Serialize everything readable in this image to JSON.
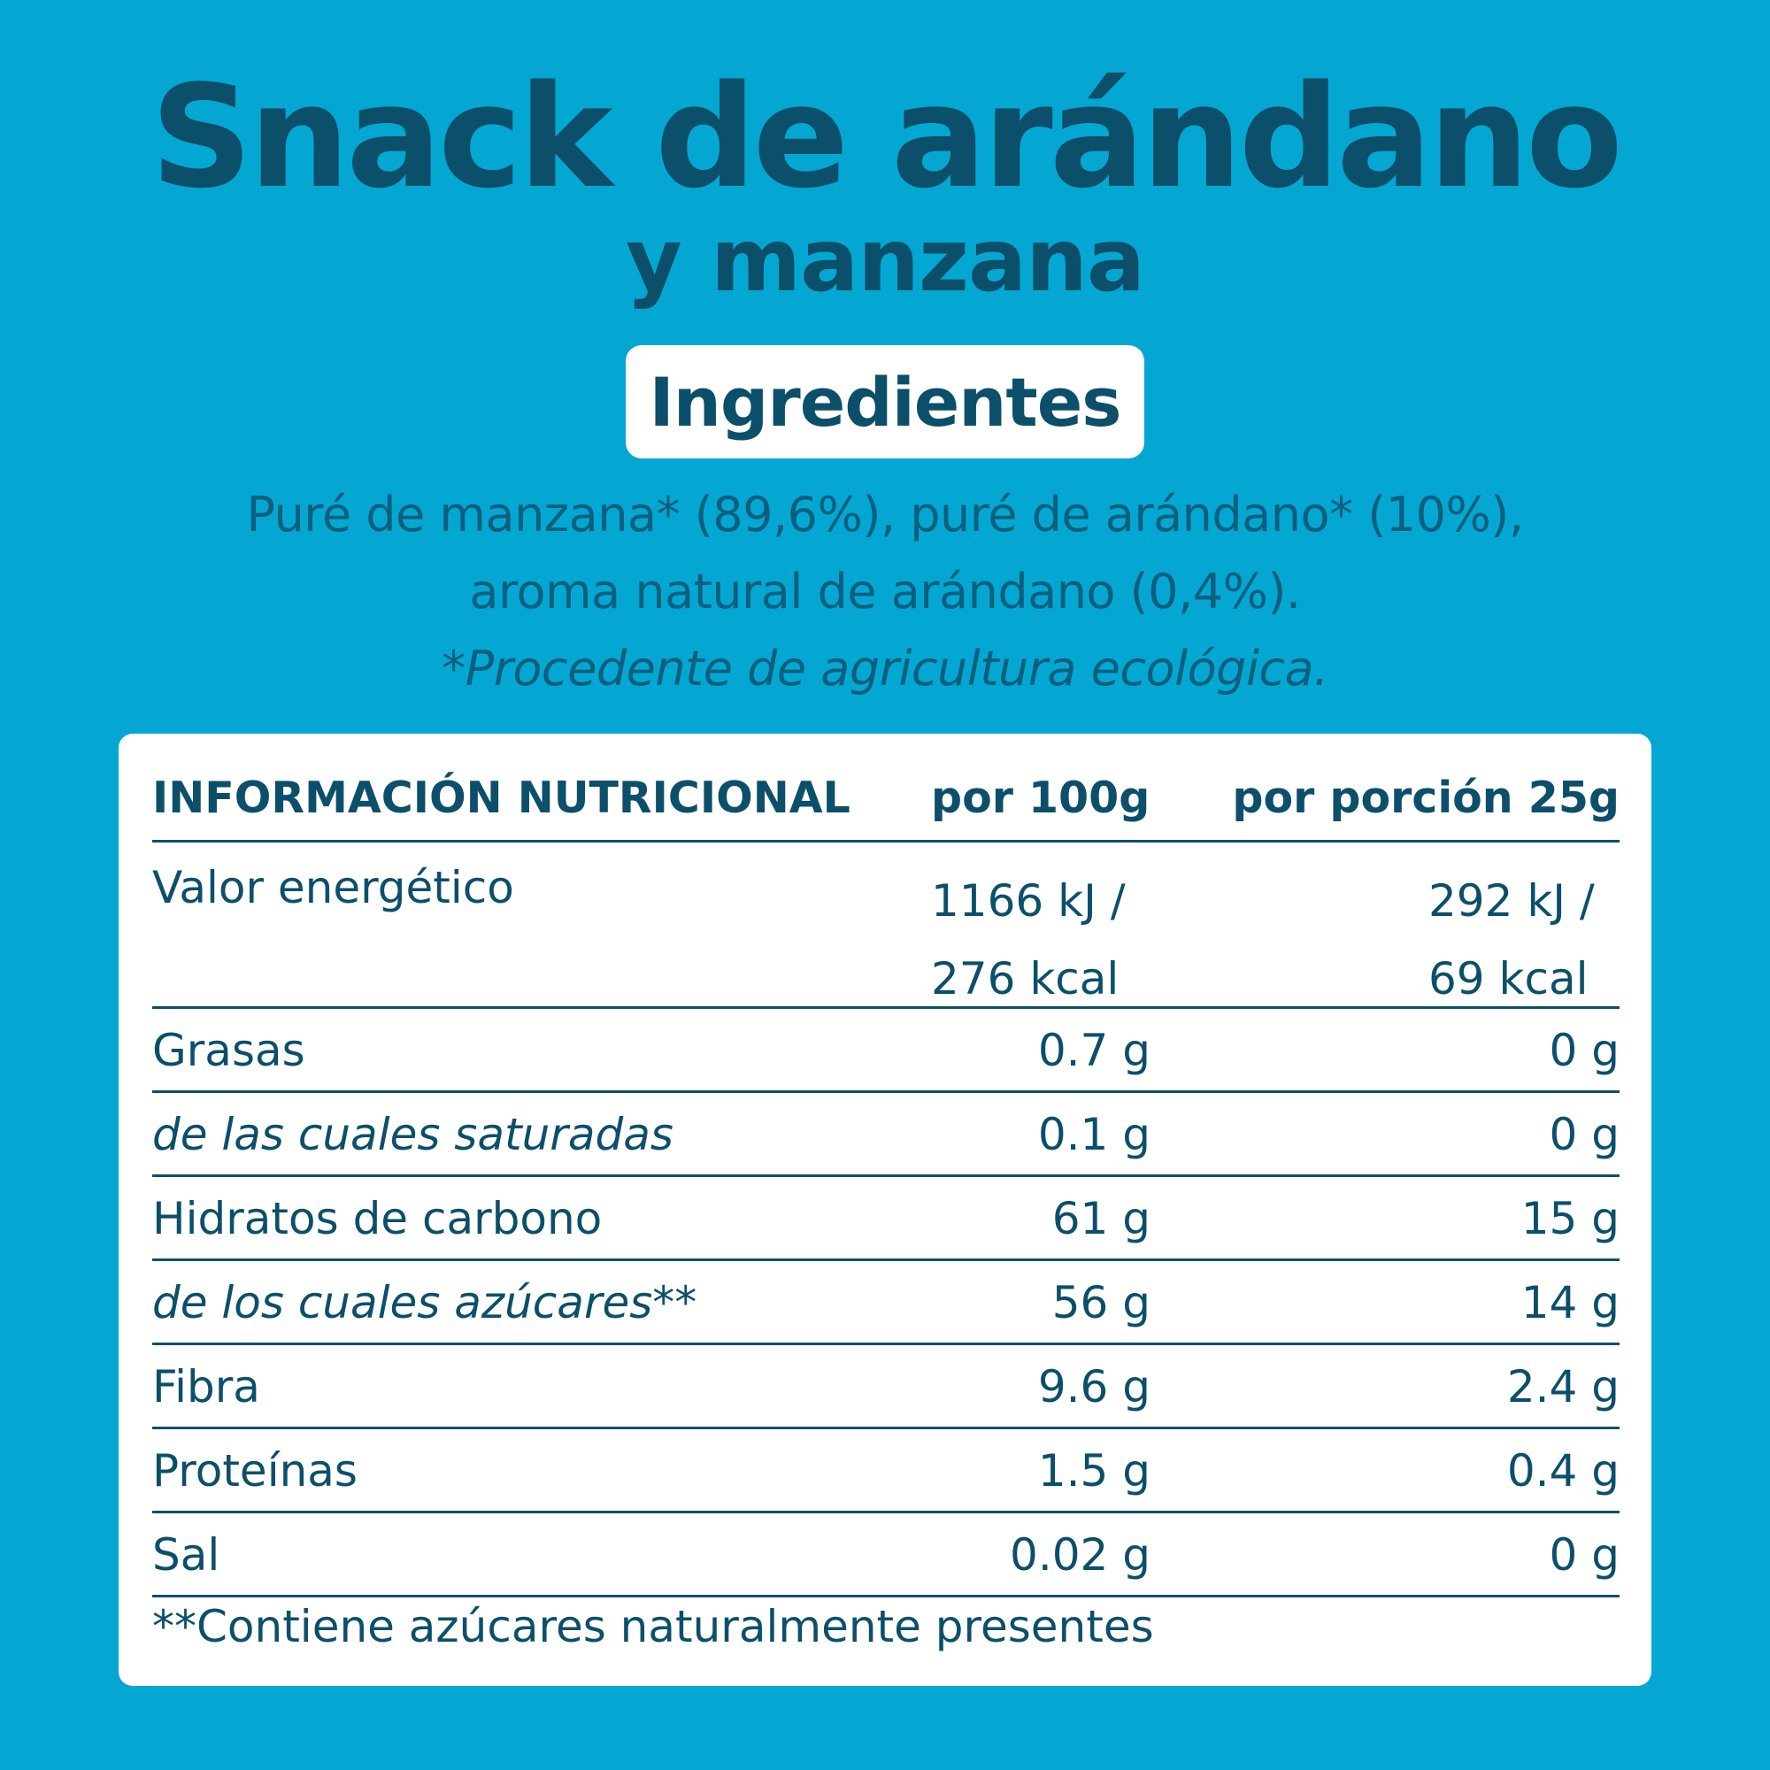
{
  "title": {
    "line1": "Snack de arándano",
    "line2": "y manzana"
  },
  "ingredients": {
    "badge": "Ingredientes",
    "line1": "Puré de manzana* (89,6%), puré de arándano* (10%),",
    "line2": "aroma natural de arándano (0,4%).",
    "note": "*Procedente de agricultura ecológica."
  },
  "nutrition": {
    "header": {
      "label": "INFORMACIÓN NUTRICIONAL",
      "per100": "por 100g",
      "perPortion": "por porción 25g"
    },
    "energy": {
      "label": "Valor energético",
      "per100_kj": "1166 kJ /",
      "per100_kcal": "276 kcal",
      "portion_kj": "292 kJ /",
      "portion_kcal": "69 kcal"
    },
    "rows": [
      {
        "label": "Grasas",
        "per100": "0.7 g",
        "perPortion": "0 g"
      },
      {
        "label": "de las cuales saturadas",
        "per100": "0.1 g",
        "perPortion": "0 g"
      },
      {
        "label": "Hidratos de carbono",
        "per100": "61 g",
        "perPortion": "15 g"
      },
      {
        "label": "de los cuales azúcares**",
        "per100": "56 g",
        "perPortion": "14 g"
      },
      {
        "label": "Fibra",
        "per100": "9.6 g",
        "perPortion": "2.4 g"
      },
      {
        "label": "Proteínas",
        "per100": "1.5 g",
        "perPortion": "0.4 g"
      },
      {
        "label": "Sal",
        "per100": "0.02 g",
        "perPortion": "0 g"
      }
    ],
    "footnote": "**Contiene azúcares naturalmente presentes"
  },
  "colors": {
    "background": "#04a7d2",
    "text": "#0c4f6a",
    "card": "#ffffff"
  }
}
